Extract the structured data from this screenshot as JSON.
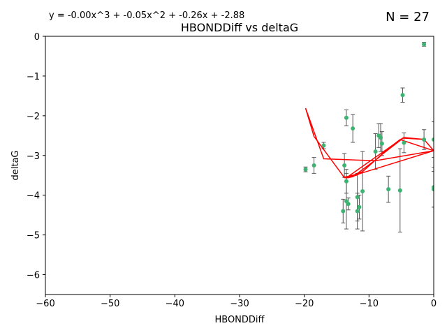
{
  "chart_data": {
    "type": "scatter",
    "title": "HBONDDiff vs deltaG",
    "xlabel": "HBONDDiff",
    "ylabel": "deltaG",
    "annotation_equation": "y = -0.00x^3 + -0.05x^2 + -0.26x + -2.88",
    "annotation_count": "N = 27",
    "xlim": [
      -60,
      0
    ],
    "ylim": [
      -6.5,
      0
    ],
    "x_ticks": [
      -60,
      -50,
      -40,
      -30,
      -20,
      -10,
      0
    ],
    "y_ticks": [
      0,
      -1,
      -2,
      -3,
      -4,
      -5,
      -6
    ],
    "grid": false,
    "colors": {
      "points": "#3cb371",
      "errorbars": "#555555",
      "fit": "#ff0000"
    },
    "points": [
      {
        "x": -1.5,
        "y": -0.2,
        "err": 0.05
      },
      {
        "x": -4.8,
        "y": -1.48,
        "err": 0.18
      },
      {
        "x": -13.5,
        "y": -2.05,
        "err": 0.2
      },
      {
        "x": -12.5,
        "y": -2.32,
        "err": 0.35
      },
      {
        "x": -8.5,
        "y": -2.5,
        "err": 0.3
      },
      {
        "x": -8.2,
        "y": -2.55,
        "err": 0.35
      },
      {
        "x": -8.0,
        "y": -2.7,
        "err": 0.3
      },
      {
        "x": -4.6,
        "y": -2.68,
        "err": 0.25
      },
      {
        "x": -1.5,
        "y": -2.6,
        "err": 0.25
      },
      {
        "x": 0.0,
        "y": -2.6,
        "err": 0.45
      },
      {
        "x": -9.0,
        "y": -2.9,
        "err": 0.45
      },
      {
        "x": -17.0,
        "y": -2.75,
        "err": 0.08
      },
      {
        "x": -19.8,
        "y": -3.35,
        "err": 0.06
      },
      {
        "x": -18.5,
        "y": -3.25,
        "err": 0.2
      },
      {
        "x": -13.8,
        "y": -3.25,
        "err": 0.3
      },
      {
        "x": -13.5,
        "y": -3.65,
        "err": 0.3
      },
      {
        "x": -11.0,
        "y": -3.9,
        "err": 1.0
      },
      {
        "x": -7.0,
        "y": -3.85,
        "err": 0.33
      },
      {
        "x": -5.2,
        "y": -3.88,
        "err": 1.05
      },
      {
        "x": 0.0,
        "y": -3.8,
        "err": 0.5
      },
      {
        "x": 0.0,
        "y": -3.85,
        "err": 0.45
      },
      {
        "x": -13.5,
        "y": -4.15,
        "err": 0.7
      },
      {
        "x": -13.2,
        "y": -4.22,
        "err": 0.15
      },
      {
        "x": -11.8,
        "y": -4.05,
        "err": 0.6
      },
      {
        "x": -11.5,
        "y": -4.3,
        "err": 0.3
      },
      {
        "x": -14.0,
        "y": -4.4,
        "err": 0.3
      },
      {
        "x": -11.8,
        "y": -4.4,
        "err": 0.45
      }
    ],
    "fit_coefficients": [
      -0.002,
      -0.05,
      -0.26,
      -2.88
    ]
  }
}
